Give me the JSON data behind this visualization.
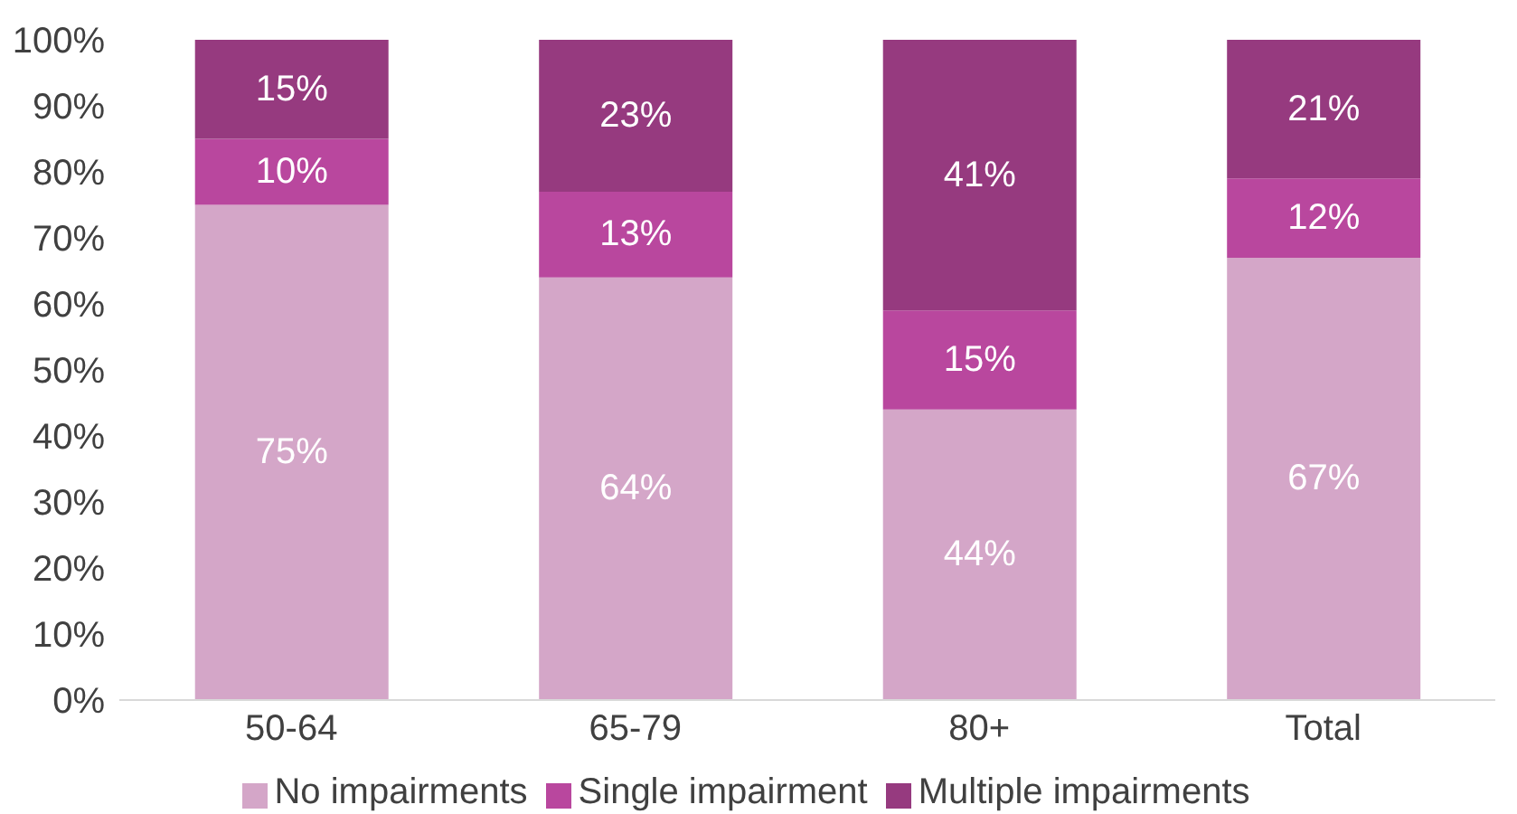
{
  "chart_data": {
    "type": "bar",
    "stacked": true,
    "categories": [
      "50-64",
      "65-79",
      "80+",
      "Total"
    ],
    "series": [
      {
        "name": "No impairments",
        "color": "#d4a6c8",
        "values": [
          75,
          64,
          44,
          67
        ],
        "value_labels": [
          "75%",
          "64%",
          "44%",
          "67%"
        ]
      },
      {
        "name": "Single impairment",
        "color": "#b9479e",
        "values": [
          10,
          13,
          15,
          12
        ],
        "value_labels": [
          "10%",
          "13%",
          "15%",
          "12%"
        ]
      },
      {
        "name": "Multiple impairments",
        "color": "#963a7f",
        "values": [
          15,
          23,
          41,
          21
        ],
        "value_labels": [
          "15%",
          "23%",
          "41%",
          "21%"
        ]
      }
    ],
    "ylim": [
      0,
      100
    ],
    "yticks": [
      {
        "value": 0,
        "label": "0%"
      },
      {
        "value": 10,
        "label": "10%"
      },
      {
        "value": 20,
        "label": "20%"
      },
      {
        "value": 30,
        "label": "30%"
      },
      {
        "value": 40,
        "label": "40%"
      },
      {
        "value": 50,
        "label": "50%"
      },
      {
        "value": 60,
        "label": "60%"
      },
      {
        "value": 70,
        "label": "70%"
      },
      {
        "value": 80,
        "label": "80%"
      },
      {
        "value": 90,
        "label": "90%"
      },
      {
        "value": 100,
        "label": "100%"
      }
    ],
    "grid": false,
    "legend": "bottom"
  }
}
